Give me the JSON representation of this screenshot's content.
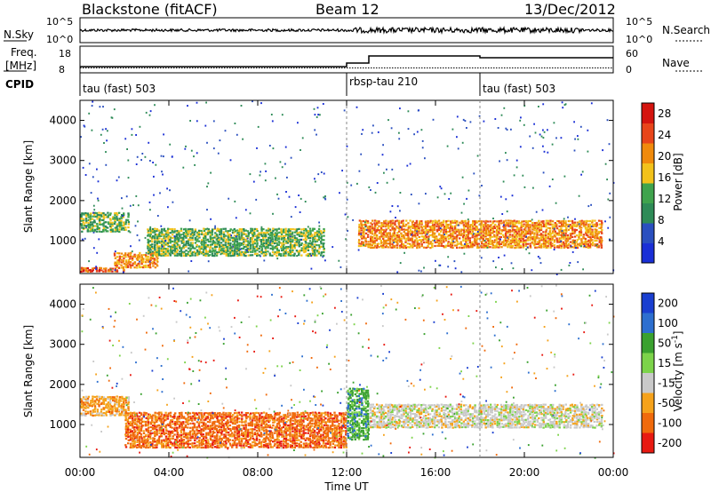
{
  "header": {
    "station": "Blackstone (fitACF)",
    "beam": "Beam 12",
    "date": "13/Dec/2012"
  },
  "strips": {
    "nsky_label": "N.Sky",
    "nsky_ticks": [
      "10^5",
      "10^0"
    ],
    "nsearch_label": "N.Search",
    "nsearch_ticks": [
      "10^5",
      "10^0"
    ],
    "freq_label_1": "Freq.",
    "freq_label_2": "[MHz]",
    "freq_ticks": [
      "18",
      "8"
    ],
    "nave_label": "Nave",
    "nave_ticks": [
      "60",
      "0"
    ],
    "cpid_label": "CPID",
    "cpid_segments": [
      {
        "label": "tau (fast) 503",
        "start_hour": 0,
        "end_hour": 12.2
      },
      {
        "label": "rbsp-tau 210",
        "start_hour": 12.2,
        "end_hour": 18
      },
      {
        "label": "tau (fast) 503",
        "start_hour": 18,
        "end_hour": 24
      }
    ]
  },
  "chart_data": [
    {
      "type": "heatmap",
      "quantity": "Power",
      "ylabel": "Slant Range [km]",
      "ylim": [
        180,
        4500
      ],
      "yticks": [
        1000,
        2000,
        3000,
        4000
      ],
      "xlabel": "Time UT",
      "xlim_hours": [
        0,
        24
      ],
      "colorbar": {
        "label": "Power [dB]",
        "ticks": [
          "4",
          "8",
          "12",
          "16",
          "20",
          "24",
          "28"
        ],
        "range": [
          0,
          30
        ],
        "colors": [
          "#1a2fd6",
          "#2a4fbf",
          "#2e8b57",
          "#3fa34d",
          "#f2c21b",
          "#f08a0c",
          "#e8451a",
          "#d4140f"
        ]
      },
      "features": [
        {
          "t_start": 0,
          "t_end": 2,
          "range_min": 200,
          "range_max": 320,
          "level_db": 24
        },
        {
          "t_start": 0,
          "t_end": 2.2,
          "range_min": 1200,
          "range_max": 1700,
          "level_db": 14
        },
        {
          "t_start": 1.5,
          "t_end": 3.5,
          "range_min": 300,
          "range_max": 700,
          "level_db": 22
        },
        {
          "t_start": 3,
          "t_end": 11,
          "range_min": 600,
          "range_max": 1300,
          "level_db": 12
        },
        {
          "t_start": 12.5,
          "t_end": 23.5,
          "range_min": 800,
          "range_max": 1500,
          "level_db": 22
        }
      ]
    },
    {
      "type": "heatmap",
      "quantity": "Velocity",
      "ylabel": "Slant Range [km]",
      "ylim": [
        180,
        4500
      ],
      "yticks": [
        1000,
        2000,
        3000,
        4000
      ],
      "xlabel": "Time UT",
      "xlim_hours": [
        0,
        24
      ],
      "xticks": [
        "00:00",
        "04:00",
        "08:00",
        "12:00",
        "16:00",
        "20:00",
        "00:00"
      ],
      "colorbar": {
        "label": "Velocity [m s^-1]",
        "ticks": [
          "200",
          "100",
          "50",
          "15",
          "-15",
          "-50",
          "-100",
          "-200"
        ],
        "colors": [
          "#1a3fd0",
          "#2d6fcf",
          "#3aa12f",
          "#7cd34a",
          "#c9c9c9",
          "#f5a21b",
          "#f06a0c",
          "#e81a12"
        ]
      },
      "features": [
        {
          "t_start": 0,
          "t_end": 2.2,
          "range_min": 1200,
          "range_max": 1700,
          "velocity": -20
        },
        {
          "t_start": 2,
          "t_end": 12,
          "range_min": 400,
          "range_max": 1300,
          "velocity": -75
        },
        {
          "t_start": 12,
          "t_end": 13,
          "range_min": 600,
          "range_max": 1900,
          "velocity": 60
        },
        {
          "t_start": 13,
          "t_end": 23.5,
          "range_min": 900,
          "range_max": 1500,
          "velocity": 0
        }
      ]
    }
  ]
}
